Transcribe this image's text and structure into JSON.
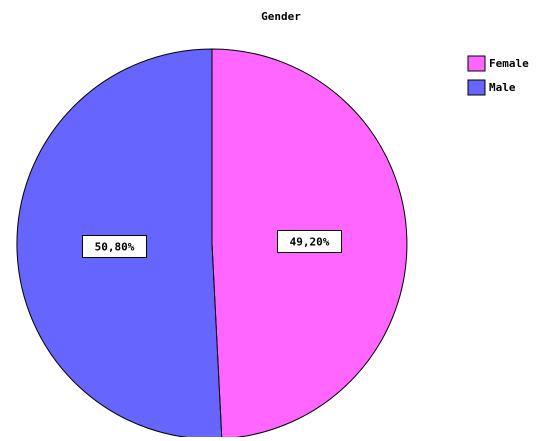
{
  "chart_data": {
    "type": "pie",
    "title": "Gender",
    "categories": [
      "Female",
      "Male"
    ],
    "values": [
      49.2,
      50.8
    ],
    "data_labels": [
      "49,20%",
      "50,80%"
    ],
    "colors": [
      "#ff66ff",
      "#6666ff"
    ],
    "legend_position": "top-right",
    "start_angle_deg": 0,
    "direction": "clockwise"
  }
}
